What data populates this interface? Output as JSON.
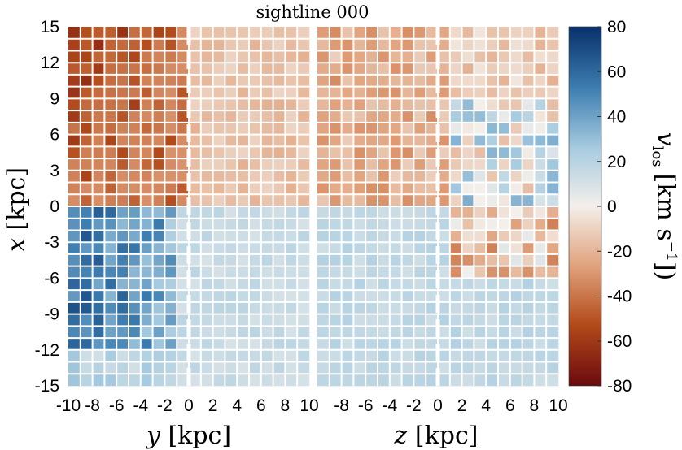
{
  "chart_data": {
    "type": "heatmap",
    "title": "sightline 000",
    "panels": [
      {
        "id": "y-panel",
        "xlabel_var": "y",
        "xlabel_unit": "[kpc]",
        "xlim": [
          -10,
          10
        ],
        "xticks": [
          "-10",
          "-8",
          "-6",
          "-4",
          "-2",
          "0",
          "2",
          "4",
          "6",
          "8",
          "10"
        ],
        "seed": 7
      },
      {
        "id": "z-panel",
        "xlabel_var": "z",
        "xlabel_unit": "[kpc]",
        "xlim": [
          -10,
          10
        ],
        "xticks": [
          "-8",
          "-6",
          "-4",
          "-2",
          "0",
          "2",
          "4",
          "6",
          "8",
          "10"
        ],
        "seed": 19
      }
    ],
    "ylabel_var": "x",
    "ylabel_unit": "[kpc]",
    "ylim": [
      -15,
      15
    ],
    "yticks": [
      "15",
      "12",
      "9",
      "6",
      "3",
      "0",
      "-3",
      "-6",
      "-9",
      "-12",
      "-15"
    ],
    "colorbar": {
      "label_var": "v",
      "label_sub": "los",
      "label_unit": "[km s",
      "label_exp": "−1",
      "label_close": "])",
      "range": [
        -80,
        80
      ],
      "ticks": [
        "80",
        "60",
        "40",
        "20",
        "0",
        "-20",
        "-40",
        "-60",
        "-80"
      ],
      "colors": [
        "#6b0a0f",
        "#b24a1a",
        "#e0a07a",
        "#f3efea",
        "#a8cce0",
        "#3d7db0",
        "#08306b"
      ]
    },
    "grid": "on",
    "grid_color": "#ffffff"
  }
}
